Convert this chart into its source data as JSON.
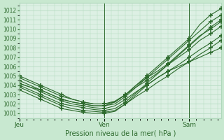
{
  "background_color": "#c8e8d0",
  "plot_bg_color": "#ddf0e4",
  "grid_color": "#b0d8bc",
  "line_color": "#2d6a2d",
  "marker_color": "#2d6a2d",
  "xlabel": "Pression niveau de la mer( hPa )",
  "ylim": [
    1000.5,
    1012.8
  ],
  "yticks": [
    1001,
    1002,
    1003,
    1004,
    1005,
    1006,
    1007,
    1008,
    1009,
    1010,
    1011,
    1012
  ],
  "day_labels": [
    "Jeu",
    "Ven",
    "Sam"
  ],
  "day_positions": [
    0,
    24,
    48
  ],
  "xlim": [
    0,
    57
  ],
  "series": [
    {
      "points": [
        [
          0,
          1005.0
        ],
        [
          3,
          1004.5
        ],
        [
          6,
          1004.0
        ],
        [
          9,
          1003.5
        ],
        [
          12,
          1003.0
        ],
        [
          15,
          1002.5
        ],
        [
          18,
          1002.2
        ],
        [
          21,
          1002.0
        ],
        [
          24,
          1002.0
        ],
        [
          27,
          1002.2
        ],
        [
          30,
          1003.0
        ],
        [
          33,
          1004.0
        ],
        [
          36,
          1005.0
        ],
        [
          39,
          1006.0
        ],
        [
          42,
          1007.0
        ],
        [
          45,
          1008.0
        ],
        [
          48,
          1009.0
        ],
        [
          51,
          1010.5
        ],
        [
          54,
          1011.5
        ],
        [
          57,
          1012.2
        ]
      ],
      "markers": [
        [
          0,
          1005.0
        ],
        [
          6,
          1004.0
        ],
        [
          12,
          1003.0
        ],
        [
          18,
          1002.2
        ],
        [
          24,
          1002.0
        ],
        [
          30,
          1003.0
        ],
        [
          36,
          1005.0
        ],
        [
          42,
          1007.0
        ],
        [
          48,
          1009.0
        ],
        [
          54,
          1011.5
        ],
        [
          57,
          1012.2
        ]
      ]
    },
    {
      "points": [
        [
          0,
          1004.2
        ],
        [
          3,
          1003.8
        ],
        [
          6,
          1003.5
        ],
        [
          9,
          1003.0
        ],
        [
          12,
          1002.5
        ],
        [
          15,
          1002.2
        ],
        [
          18,
          1002.0
        ],
        [
          21,
          1001.8
        ],
        [
          24,
          1001.8
        ],
        [
          27,
          1002.0
        ],
        [
          30,
          1002.8
        ],
        [
          33,
          1003.8
        ],
        [
          36,
          1004.8
        ],
        [
          39,
          1005.8
        ],
        [
          42,
          1006.8
        ],
        [
          45,
          1007.8
        ],
        [
          48,
          1008.8
        ],
        [
          51,
          1009.8
        ],
        [
          54,
          1010.8
        ],
        [
          57,
          1011.5
        ]
      ],
      "markers": [
        [
          0,
          1004.2
        ],
        [
          6,
          1003.5
        ],
        [
          12,
          1002.5
        ],
        [
          18,
          1002.0
        ],
        [
          24,
          1001.8
        ],
        [
          30,
          1002.8
        ],
        [
          36,
          1004.8
        ],
        [
          42,
          1006.8
        ],
        [
          48,
          1008.8
        ],
        [
          54,
          1010.8
        ],
        [
          57,
          1011.5
        ]
      ]
    },
    {
      "points": [
        [
          0,
          1004.0
        ],
        [
          3,
          1003.5
        ],
        [
          6,
          1003.0
        ],
        [
          9,
          1002.5
        ],
        [
          12,
          1002.0
        ],
        [
          15,
          1001.8
        ],
        [
          18,
          1001.6
        ],
        [
          21,
          1001.4
        ],
        [
          24,
          1001.3
        ],
        [
          27,
          1001.5
        ],
        [
          30,
          1002.2
        ],
        [
          33,
          1003.2
        ],
        [
          36,
          1004.2
        ],
        [
          39,
          1005.2
        ],
        [
          42,
          1006.2
        ],
        [
          45,
          1007.2
        ],
        [
          48,
          1008.2
        ],
        [
          51,
          1009.2
        ],
        [
          54,
          1010.2
        ],
        [
          57,
          1011.0
        ]
      ],
      "markers": [
        [
          0,
          1004.0
        ],
        [
          6,
          1003.0
        ],
        [
          12,
          1002.0
        ],
        [
          18,
          1001.6
        ],
        [
          24,
          1001.3
        ],
        [
          30,
          1002.2
        ],
        [
          36,
          1004.2
        ],
        [
          42,
          1006.2
        ],
        [
          48,
          1008.2
        ],
        [
          54,
          1010.2
        ],
        [
          57,
          1011.0
        ]
      ]
    },
    {
      "points": [
        [
          0,
          1004.5
        ],
        [
          3,
          1004.0
        ],
        [
          6,
          1003.5
        ],
        [
          9,
          1003.0
        ],
        [
          12,
          1002.5
        ],
        [
          15,
          1002.2
        ],
        [
          18,
          1002.0
        ],
        [
          21,
          1001.8
        ],
        [
          24,
          1001.8
        ],
        [
          27,
          1002.2
        ],
        [
          30,
          1003.0
        ],
        [
          33,
          1004.0
        ],
        [
          36,
          1004.8
        ],
        [
          39,
          1005.5
        ],
        [
          42,
          1006.3
        ],
        [
          45,
          1007.3
        ],
        [
          48,
          1008.3
        ],
        [
          51,
          1009.3
        ],
        [
          54,
          1010.0
        ],
        [
          57,
          1010.8
        ]
      ],
      "markers": [
        [
          0,
          1004.5
        ],
        [
          6,
          1003.5
        ],
        [
          12,
          1002.5
        ],
        [
          18,
          1002.0
        ],
        [
          24,
          1001.8
        ],
        [
          30,
          1003.0
        ],
        [
          36,
          1004.8
        ],
        [
          42,
          1006.3
        ],
        [
          48,
          1008.3
        ],
        [
          54,
          1010.0
        ],
        [
          57,
          1010.8
        ]
      ]
    },
    {
      "points": [
        [
          0,
          1004.8
        ],
        [
          3,
          1004.3
        ],
        [
          6,
          1003.8
        ],
        [
          9,
          1003.3
        ],
        [
          12,
          1002.8
        ],
        [
          15,
          1002.5
        ],
        [
          18,
          1002.2
        ],
        [
          21,
          1002.0
        ],
        [
          24,
          1002.0
        ],
        [
          27,
          1002.3
        ],
        [
          30,
          1003.0
        ],
        [
          33,
          1003.8
        ],
        [
          36,
          1004.5
        ],
        [
          39,
          1005.3
        ],
        [
          42,
          1006.2
        ],
        [
          45,
          1007.0
        ],
        [
          48,
          1007.8
        ],
        [
          51,
          1008.8
        ],
        [
          54,
          1009.5
        ],
        [
          57,
          1010.3
        ]
      ],
      "markers": [
        [
          0,
          1004.8
        ],
        [
          6,
          1003.8
        ],
        [
          12,
          1002.8
        ],
        [
          18,
          1002.2
        ],
        [
          24,
          1002.0
        ],
        [
          30,
          1003.0
        ],
        [
          36,
          1004.5
        ],
        [
          42,
          1006.2
        ],
        [
          48,
          1007.8
        ],
        [
          54,
          1009.5
        ],
        [
          57,
          1010.3
        ]
      ]
    },
    {
      "points": [
        [
          0,
          1004.2
        ],
        [
          3,
          1003.8
        ],
        [
          6,
          1003.3
        ],
        [
          9,
          1002.8
        ],
        [
          12,
          1002.3
        ],
        [
          15,
          1002.0
        ],
        [
          18,
          1001.8
        ],
        [
          21,
          1001.6
        ],
        [
          24,
          1001.5
        ],
        [
          27,
          1001.8
        ],
        [
          30,
          1002.5
        ],
        [
          33,
          1003.3
        ],
        [
          36,
          1004.0
        ],
        [
          39,
          1004.8
        ],
        [
          42,
          1005.5
        ],
        [
          45,
          1006.2
        ],
        [
          48,
          1007.0
        ],
        [
          51,
          1007.8
        ],
        [
          54,
          1008.5
        ],
        [
          57,
          1009.3
        ]
      ],
      "markers": [
        [
          0,
          1004.2
        ],
        [
          6,
          1003.3
        ],
        [
          12,
          1002.3
        ],
        [
          18,
          1001.8
        ],
        [
          24,
          1001.5
        ],
        [
          30,
          1002.5
        ],
        [
          36,
          1004.0
        ],
        [
          42,
          1005.5
        ],
        [
          48,
          1007.0
        ],
        [
          54,
          1008.5
        ],
        [
          57,
          1009.3
        ]
      ]
    },
    {
      "points": [
        [
          0,
          1003.8
        ],
        [
          3,
          1003.3
        ],
        [
          6,
          1002.8
        ],
        [
          9,
          1002.3
        ],
        [
          12,
          1001.8
        ],
        [
          15,
          1001.5
        ],
        [
          18,
          1001.3
        ],
        [
          21,
          1001.2
        ],
        [
          24,
          1001.1
        ],
        [
          27,
          1001.3
        ],
        [
          30,
          1002.0
        ],
        [
          33,
          1002.8
        ],
        [
          36,
          1003.5
        ],
        [
          39,
          1004.3
        ],
        [
          42,
          1005.0
        ],
        [
          45,
          1005.8
        ],
        [
          48,
          1006.5
        ],
        [
          51,
          1007.3
        ],
        [
          54,
          1008.0
        ],
        [
          57,
          1008.8
        ]
      ],
      "markers": [
        [
          0,
          1003.8
        ],
        [
          6,
          1002.8
        ],
        [
          12,
          1001.8
        ],
        [
          18,
          1001.3
        ],
        [
          24,
          1001.1
        ],
        [
          30,
          1002.0
        ],
        [
          36,
          1003.5
        ],
        [
          42,
          1005.0
        ],
        [
          48,
          1006.5
        ],
        [
          54,
          1008.0
        ],
        [
          57,
          1008.8
        ]
      ]
    },
    {
      "points": [
        [
          0,
          1003.5
        ],
        [
          6,
          1002.5
        ],
        [
          9,
          1002.0
        ],
        [
          12,
          1001.5
        ],
        [
          15,
          1001.3
        ],
        [
          18,
          1001.1
        ],
        [
          21,
          1001.0
        ],
        [
          24,
          1001.0
        ],
        [
          27,
          1001.2
        ],
        [
          30,
          1002.0
        ],
        [
          33,
          1003.0
        ],
        [
          36,
          1004.0
        ],
        [
          39,
          1004.8
        ],
        [
          42,
          1005.5
        ],
        [
          45,
          1006.0
        ],
        [
          48,
          1006.5
        ],
        [
          51,
          1007.0
        ],
        [
          54,
          1007.5
        ],
        [
          57,
          1008.0
        ]
      ],
      "markers": [
        [
          0,
          1003.5
        ],
        [
          6,
          1002.5
        ],
        [
          12,
          1001.5
        ],
        [
          18,
          1001.1
        ],
        [
          24,
          1001.0
        ],
        [
          30,
          1002.0
        ],
        [
          36,
          1004.0
        ],
        [
          42,
          1005.5
        ],
        [
          48,
          1006.5
        ],
        [
          54,
          1007.5
        ],
        [
          57,
          1008.0
        ]
      ]
    }
  ]
}
